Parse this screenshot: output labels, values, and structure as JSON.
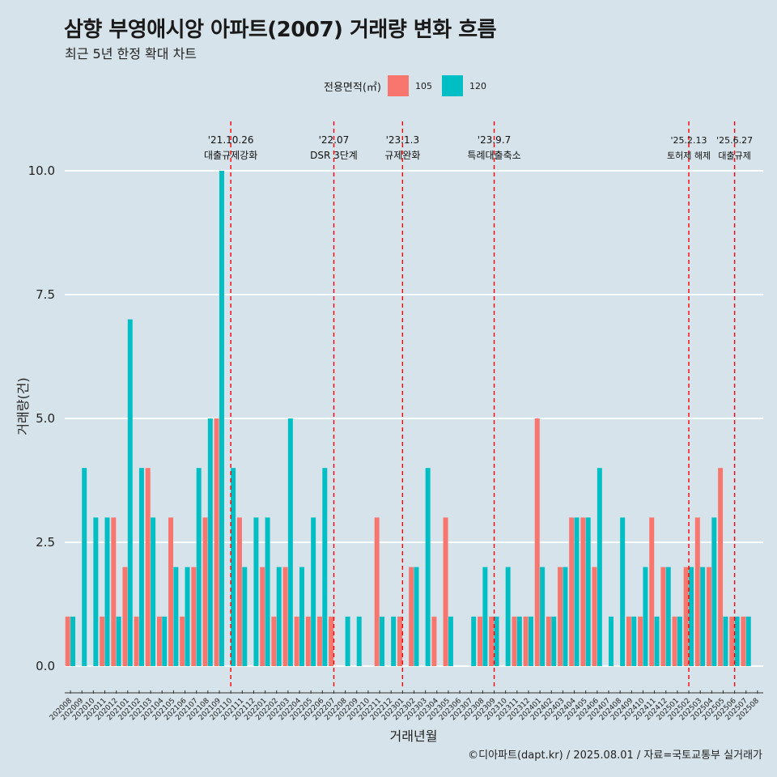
{
  "title": "삼향 부영애시앙 아파트(2007) 거래량 변화 흐름",
  "subtitle": "최근 5년 한정 확대 차트",
  "caption": "©디아파트(dapt.kr) / 2025.08.01 / 자료=국토교통부 실거래가",
  "legend": {
    "title": "전용면적(㎡)",
    "items": [
      {
        "label": "105",
        "color": "#f8766d"
      },
      {
        "label": "120",
        "color": "#00bfc4"
      }
    ]
  },
  "chart_data": {
    "type": "bar",
    "xlabel": "거래년월",
    "ylabel": "거래량(건)",
    "ylim": [
      0,
      10
    ],
    "yticks": [
      0.0,
      2.5,
      5.0,
      7.5,
      10.0
    ],
    "ytick_labels": [
      "0.0",
      "2.5",
      "5.0",
      "7.5",
      "10.0"
    ],
    "categories": [
      "202008",
      "202009",
      "202010",
      "202011",
      "202012",
      "202101",
      "202102",
      "202103",
      "202104",
      "202105",
      "202106",
      "202107",
      "202108",
      "202109",
      "202110",
      "202111",
      "202112",
      "202201",
      "202202",
      "202203",
      "202204",
      "202205",
      "202206",
      "202207",
      "202208",
      "202209",
      "202210",
      "202211",
      "202212",
      "202301",
      "202302",
      "202303",
      "202304",
      "202305",
      "202306",
      "202307",
      "202308",
      "202309",
      "202310",
      "202311",
      "202312",
      "202401",
      "202402",
      "202403",
      "202404",
      "202405",
      "202406",
      "202407",
      "202408",
      "202409",
      "202410",
      "202411",
      "202412",
      "202501",
      "202502",
      "202503",
      "202504",
      "202505",
      "202506",
      "202507",
      "202508"
    ],
    "series": [
      {
        "name": "105",
        "color": "#f8766d",
        "values": [
          1,
          0,
          0,
          1,
          3,
          2,
          1,
          4,
          1,
          3,
          1,
          2,
          3,
          5,
          0,
          3,
          0,
          2,
          1,
          2,
          1,
          1,
          1,
          1,
          0,
          0,
          0,
          3,
          0,
          1,
          2,
          0,
          1,
          3,
          0,
          0,
          1,
          1,
          0,
          1,
          1,
          5,
          1,
          2,
          3,
          3,
          2,
          0,
          0,
          1,
          1,
          3,
          2,
          1,
          2,
          3,
          2,
          4,
          1,
          1,
          0
        ]
      },
      {
        "name": "120",
        "color": "#00bfc4",
        "values": [
          1,
          4,
          3,
          3,
          1,
          7,
          4,
          3,
          1,
          2,
          2,
          4,
          5,
          10,
          4,
          2,
          3,
          3,
          2,
          5,
          2,
          3,
          4,
          0,
          1,
          1,
          0,
          1,
          1,
          0,
          2,
          4,
          0,
          1,
          0,
          1,
          2,
          1,
          2,
          1,
          1,
          2,
          1,
          2,
          3,
          3,
          4,
          1,
          3,
          1,
          2,
          1,
          2,
          1,
          2,
          2,
          3,
          1,
          1,
          1,
          0
        ]
      }
    ],
    "annotations": [
      {
        "date": "'21.10.26",
        "label": "대출규제강화",
        "x": "202110"
      },
      {
        "date": "'22.07",
        "label": "DSR 3단계",
        "x": "202207"
      },
      {
        "date": "'23.1.3",
        "label": "규제완화",
        "x": "202301"
      },
      {
        "date": "'23.9.7",
        "label": "특례대출축소",
        "x": "202309"
      },
      {
        "date": "'25.2.13",
        "label": "토허제 해제",
        "x": "202502"
      },
      {
        "date": "'25.6.27",
        "label": "대출규제",
        "x": "202506"
      }
    ]
  }
}
